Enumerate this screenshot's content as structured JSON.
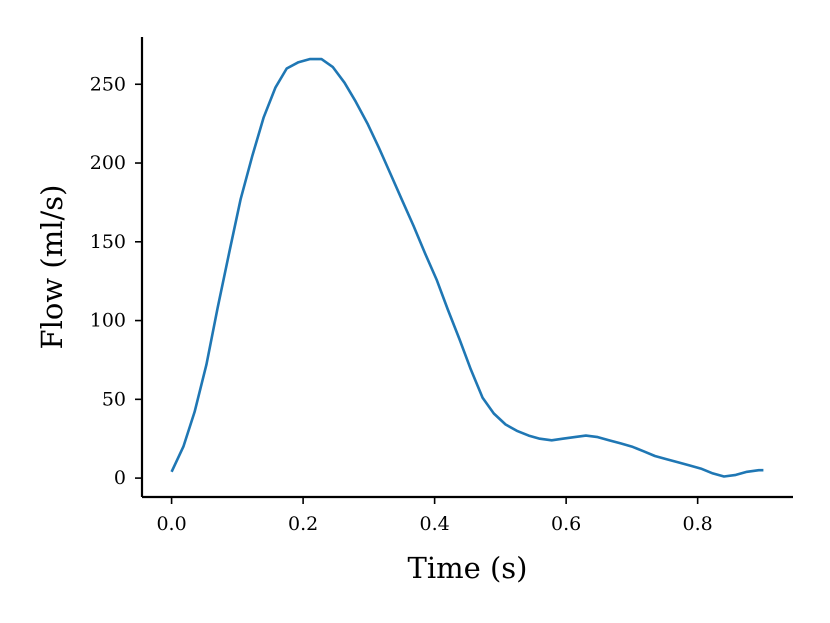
{
  "chart_data": {
    "type": "line",
    "title": "",
    "xlabel": "Time (s)",
    "ylabel": "Flow (ml/s)",
    "xlim": [
      -0.045,
      0.945
    ],
    "ylim": [
      -12,
      280
    ],
    "grid": false,
    "legend": "none",
    "xticks": [
      0.0,
      0.2,
      0.4,
      0.6,
      0.8
    ],
    "xtick_labels": [
      "0.0",
      "0.2",
      "0.4",
      "0.6",
      "0.8"
    ],
    "yticks": [
      0,
      50,
      100,
      150,
      200,
      250
    ],
    "ytick_labels": [
      "0",
      "50",
      "100",
      "150",
      "200",
      "250"
    ],
    "series": [
      {
        "color": "#1f77b4",
        "x": [
          0.0,
          0.018,
          0.035,
          0.053,
          0.07,
          0.088,
          0.105,
          0.123,
          0.14,
          0.158,
          0.175,
          0.193,
          0.21,
          0.228,
          0.245,
          0.263,
          0.28,
          0.298,
          0.315,
          0.333,
          0.35,
          0.368,
          0.385,
          0.403,
          0.42,
          0.438,
          0.455,
          0.473,
          0.49,
          0.508,
          0.525,
          0.543,
          0.56,
          0.578,
          0.595,
          0.613,
          0.63,
          0.648,
          0.665,
          0.683,
          0.7,
          0.718,
          0.735,
          0.753,
          0.77,
          0.788,
          0.805,
          0.823,
          0.84,
          0.858,
          0.875,
          0.893,
          0.9
        ],
        "y": [
          4,
          20,
          42,
          72,
          108,
          144,
          177,
          205,
          229,
          248,
          260,
          264,
          266,
          266,
          261,
          251,
          239,
          225,
          210,
          193,
          177,
          160,
          143,
          126,
          107,
          88,
          69,
          51,
          41,
          34,
          30,
          27,
          25,
          24,
          25,
          26,
          27,
          26,
          24,
          22,
          20,
          17,
          14,
          12,
          10,
          8,
          6,
          3,
          1,
          2,
          4,
          5,
          5
        ]
      }
    ]
  }
}
